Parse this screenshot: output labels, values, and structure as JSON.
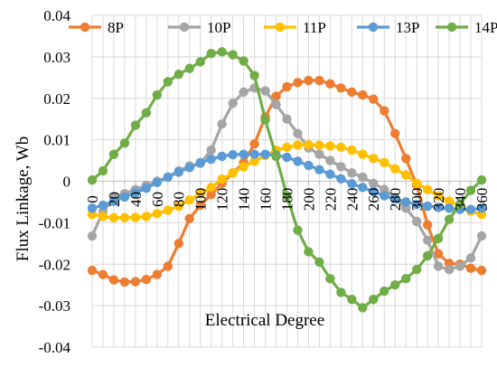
{
  "chart_data": {
    "type": "line",
    "title": "",
    "xlabel": "Electrical Degree",
    "ylabel": "Flux Linkage, Wb",
    "xlim": [
      0,
      360
    ],
    "ylim": [
      -0.04,
      0.04
    ],
    "y_ticks": [
      "0.04",
      "0.03",
      "0.02",
      "0.01",
      "0",
      "-0.01",
      "-0.02",
      "-0.03",
      "-0.04"
    ],
    "x_tick_labels": [
      "0",
      "20",
      "40",
      "60",
      "80",
      "100",
      "120",
      "140",
      "160",
      "180",
      "200",
      "220",
      "240",
      "260",
      "280",
      "300",
      "320",
      "340",
      "360"
    ],
    "grid": "on",
    "legend_position": "top",
    "x": [
      0,
      10,
      20,
      30,
      40,
      50,
      60,
      70,
      80,
      90,
      100,
      110,
      120,
      130,
      140,
      150,
      160,
      170,
      180,
      190,
      200,
      210,
      220,
      230,
      240,
      250,
      260,
      270,
      280,
      290,
      300,
      310,
      320,
      330,
      340,
      350,
      360
    ],
    "series": [
      {
        "name": "8P",
        "color": "#ED7D31",
        "values": [
          -0.0215,
          -0.0225,
          -0.0238,
          -0.0243,
          -0.0242,
          -0.0237,
          -0.0225,
          -0.0205,
          -0.015,
          -0.009,
          -0.0058,
          -0.0032,
          -0.0005,
          0.002,
          0.0045,
          0.009,
          0.0155,
          0.0205,
          0.0228,
          0.0238,
          0.0243,
          0.0243,
          0.0235,
          0.0225,
          0.0215,
          0.0208,
          0.0198,
          0.017,
          0.0115,
          0.0055,
          -0.001,
          -0.0105,
          -0.0175,
          -0.0198,
          -0.02,
          -0.021,
          -0.0215
        ]
      },
      {
        "name": "10P",
        "color": "#A5A5A5",
        "values": [
          -0.0132,
          -0.0073,
          -0.004,
          -0.003,
          -0.002,
          -0.001,
          0.0,
          0.001,
          0.0025,
          0.0037,
          0.0043,
          0.0075,
          0.0138,
          0.0188,
          0.0215,
          0.0225,
          0.0218,
          0.0185,
          0.015,
          0.0115,
          0.008,
          0.0065,
          0.005,
          0.0035,
          0.002,
          0.001,
          -0.0005,
          -0.002,
          -0.004,
          -0.0065,
          -0.0097,
          -0.0142,
          -0.0205,
          -0.0213,
          -0.0205,
          -0.0185,
          -0.0132
        ]
      },
      {
        "name": "11P",
        "color": "#FFC000",
        "values": [
          -0.008,
          -0.0085,
          -0.0088,
          -0.0088,
          -0.0087,
          -0.0085,
          -0.0078,
          -0.007,
          -0.006,
          -0.0045,
          -0.003,
          -0.0015,
          0.0005,
          0.002,
          0.0035,
          0.0048,
          0.0062,
          0.0075,
          0.0082,
          0.0087,
          0.0088,
          0.0087,
          0.0085,
          0.0082,
          0.0075,
          0.0065,
          0.0055,
          0.0045,
          0.003,
          0.0015,
          -0.0005,
          -0.002,
          -0.0035,
          -0.0048,
          -0.006,
          -0.0072,
          -0.008
        ]
      },
      {
        "name": "13P",
        "color": "#5B9BD5",
        "values": [
          -0.0065,
          -0.0058,
          -0.0048,
          -0.0038,
          -0.0028,
          -0.0017,
          -0.0003,
          0.001,
          0.0022,
          0.0033,
          0.0045,
          0.0053,
          0.006,
          0.0064,
          0.0065,
          0.0065,
          0.0065,
          0.0063,
          0.0058,
          0.0048,
          0.0038,
          0.0028,
          0.0017,
          0.0006,
          -0.0006,
          -0.0015,
          -0.0025,
          -0.0035,
          -0.0043,
          -0.005,
          -0.0056,
          -0.006,
          -0.0063,
          -0.0065,
          -0.0068,
          -0.0068,
          -0.0065
        ]
      },
      {
        "name": "14P",
        "color": "#70AD47",
        "values": [
          0.0003,
          0.0025,
          0.0065,
          0.0092,
          0.0135,
          0.0165,
          0.0208,
          0.024,
          0.0258,
          0.0272,
          0.0288,
          0.0308,
          0.0312,
          0.0305,
          0.029,
          0.0255,
          0.0148,
          0.006,
          -0.0035,
          -0.0118,
          -0.017,
          -0.0195,
          -0.0235,
          -0.0268,
          -0.0285,
          -0.0305,
          -0.0285,
          -0.0265,
          -0.025,
          -0.0235,
          -0.0213,
          -0.018,
          -0.0138,
          -0.0092,
          -0.0055,
          -0.0022,
          0.0003
        ]
      }
    ]
  }
}
